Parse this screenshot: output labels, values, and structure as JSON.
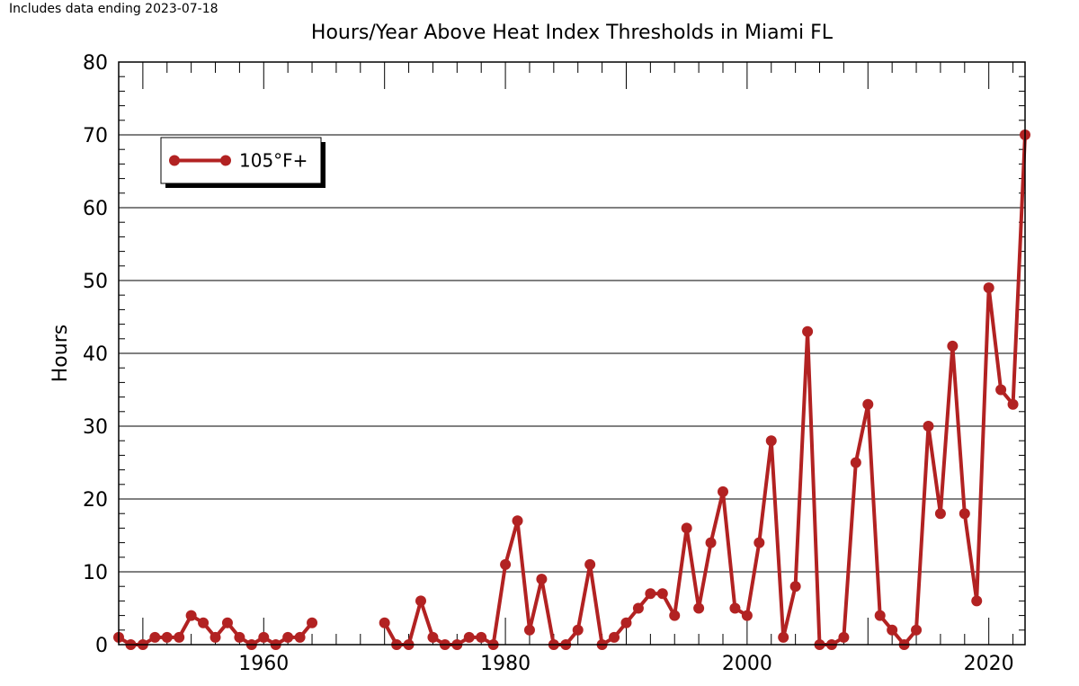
{
  "note": "Includes data ending 2023-07-18",
  "chart_data": {
    "type": "line",
    "title": "Hours/Year Above Heat Index Thresholds in Miami FL",
    "xlabel": "",
    "ylabel": "Hours",
    "xlim": [
      1948,
      2023
    ],
    "ylim": [
      0,
      80
    ],
    "xticks": [
      1960,
      1980,
      2000,
      2020
    ],
    "yticks": [
      0,
      10,
      20,
      30,
      40,
      50,
      60,
      70,
      80
    ],
    "grid": "horizontal",
    "legend_position": "top-left",
    "series": [
      {
        "name": "105°F+",
        "color": "#b22222",
        "points": [
          [
            1948,
            1
          ],
          [
            1949,
            0
          ],
          [
            1950,
            0
          ],
          [
            1951,
            1
          ],
          [
            1952,
            1
          ],
          [
            1953,
            1
          ],
          [
            1954,
            4
          ],
          [
            1955,
            3
          ],
          [
            1956,
            1
          ],
          [
            1957,
            3
          ],
          [
            1958,
            1
          ],
          [
            1959,
            0
          ],
          [
            1960,
            1
          ],
          [
            1961,
            0
          ],
          [
            1962,
            1
          ],
          [
            1963,
            1
          ],
          [
            1964,
            3
          ],
          null,
          [
            1970,
            3
          ],
          [
            1971,
            0
          ],
          [
            1972,
            0
          ],
          [
            1973,
            6
          ],
          [
            1974,
            1
          ],
          [
            1975,
            0
          ],
          [
            1976,
            0
          ],
          [
            1977,
            1
          ],
          [
            1978,
            1
          ],
          [
            1979,
            0
          ],
          [
            1980,
            11
          ],
          [
            1981,
            17
          ],
          [
            1982,
            2
          ],
          [
            1983,
            9
          ],
          [
            1984,
            0
          ],
          [
            1985,
            0
          ],
          [
            1986,
            2
          ],
          [
            1987,
            11
          ],
          [
            1988,
            0
          ],
          [
            1989,
            1
          ],
          [
            1990,
            3
          ],
          [
            1991,
            5
          ],
          [
            1992,
            7
          ],
          [
            1993,
            7
          ],
          [
            1994,
            4
          ],
          [
            1995,
            16
          ],
          [
            1996,
            5
          ],
          [
            1997,
            14
          ],
          [
            1998,
            21
          ],
          [
            1999,
            5
          ],
          [
            2000,
            4
          ],
          [
            2001,
            14
          ],
          [
            2002,
            28
          ],
          [
            2003,
            1
          ],
          [
            2004,
            8
          ],
          [
            2005,
            43
          ],
          [
            2006,
            0
          ],
          [
            2007,
            0
          ],
          [
            2008,
            1
          ],
          [
            2009,
            25
          ],
          [
            2010,
            33
          ],
          [
            2011,
            4
          ],
          [
            2012,
            2
          ],
          [
            2013,
            0
          ],
          [
            2014,
            2
          ],
          [
            2015,
            30
          ],
          [
            2016,
            18
          ],
          [
            2017,
            41
          ],
          [
            2018,
            18
          ],
          [
            2019,
            6
          ],
          [
            2020,
            49
          ],
          [
            2021,
            35
          ],
          [
            2022,
            33
          ],
          [
            2023,
            70
          ]
        ]
      }
    ]
  }
}
